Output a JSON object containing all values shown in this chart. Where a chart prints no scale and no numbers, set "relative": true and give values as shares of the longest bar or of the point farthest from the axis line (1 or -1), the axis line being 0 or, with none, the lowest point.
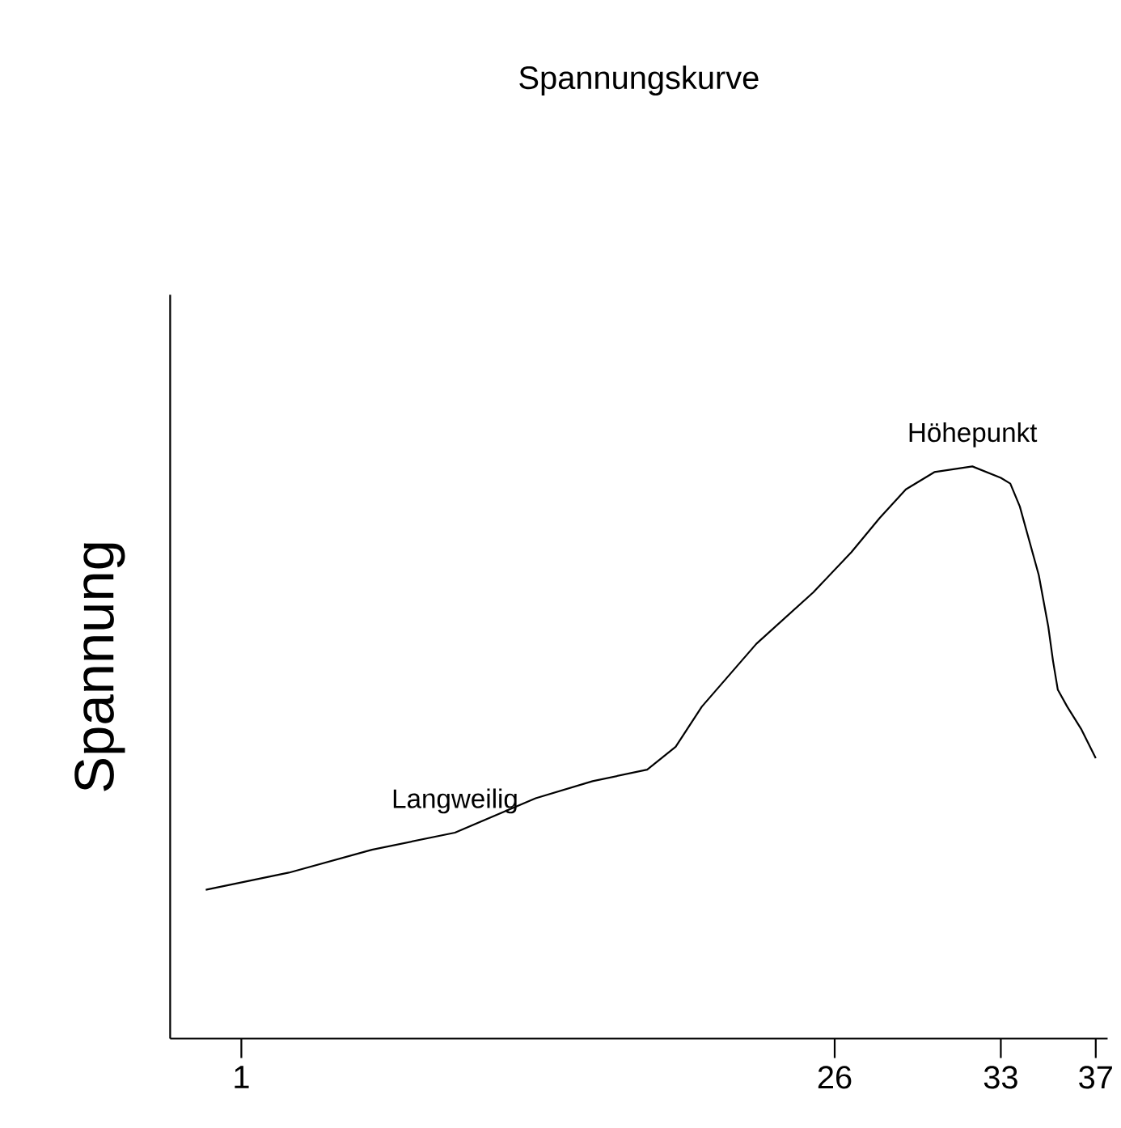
{
  "chart_data": {
    "type": "line",
    "title": "Spannungskurve",
    "ylabel": "Spannung",
    "relative": true,
    "x": [
      -0.5,
      3.0,
      6.5,
      10.0,
      13.4,
      15.8,
      18.1,
      19.3,
      20.4,
      22.7,
      25.1,
      26.7,
      27.9,
      29.0,
      30.2,
      31.8,
      33.0,
      33.4,
      33.8,
      34.2,
      34.6,
      35.0,
      35.2,
      35.4,
      35.8,
      36.4,
      37.0
    ],
    "values": [
      0.26,
      0.29,
      0.33,
      0.36,
      0.42,
      0.45,
      0.47,
      0.51,
      0.58,
      0.69,
      0.78,
      0.85,
      0.91,
      0.96,
      0.99,
      1.0,
      0.98,
      0.97,
      0.93,
      0.87,
      0.81,
      0.72,
      0.66,
      0.61,
      0.58,
      0.54,
      0.49
    ],
    "color": "#000000",
    "xlim": [
      -2,
      37.5
    ],
    "xticks": [
      1,
      26,
      33,
      37
    ],
    "tick_labels": "x",
    "grid": false,
    "legend": false,
    "marker": "none",
    "line_style": "solid",
    "annotations": [
      {
        "text": "Langweilig",
        "x": 10.0,
        "y": 0.36
      },
      {
        "text": "Höhepunkt",
        "x": 31.8,
        "y": 1.0
      }
    ]
  }
}
